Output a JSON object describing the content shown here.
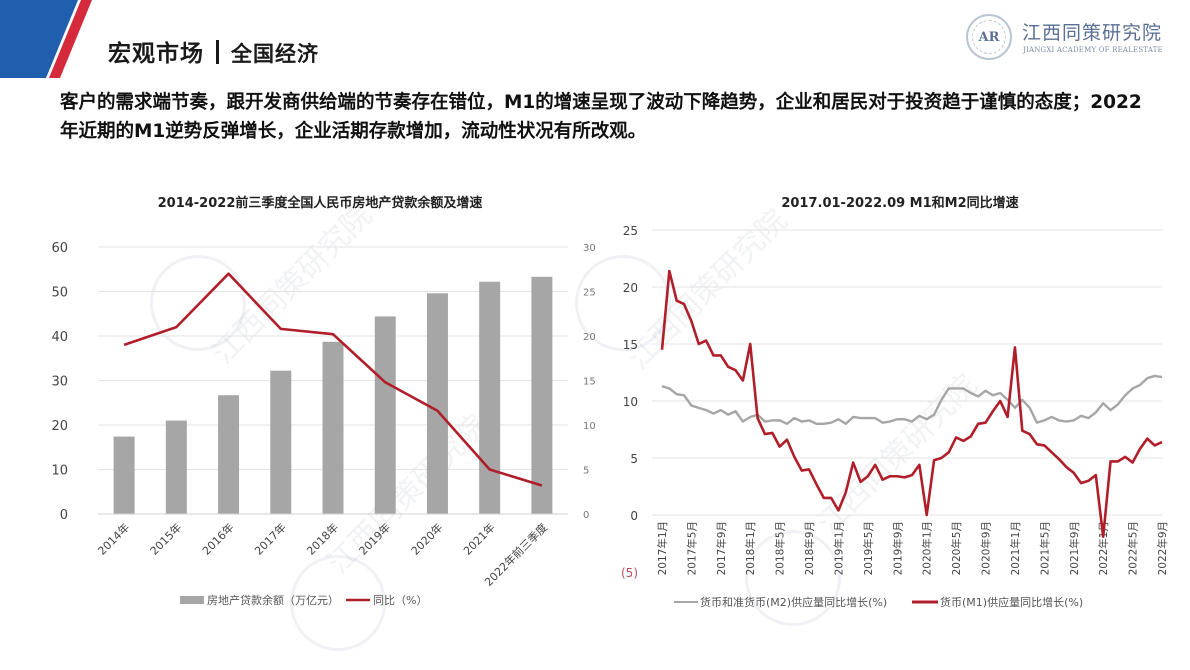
{
  "header": {
    "title": "宏观市场",
    "subtitle": "全国经济",
    "brand_colors": {
      "blue": "#1f5fae",
      "red": "#d42a3c"
    }
  },
  "logo": {
    "seal_text": "AR",
    "name_cn": "江西同策研究院",
    "name_en": "JIANGXI ACADEMY OF REALESTATE"
  },
  "summary": "客户的需求端节奏，跟开发商供给端的节奏存在错位，M1的增速呈现了波动下降趋势，企业和居民对于投资趋于谨慎的态度；2022年近期的M1逆势反弹增长，企业活期存款增加，流动性状况有所改观。",
  "watermark_text": "江西同策研究院",
  "chart_data": [
    {
      "type": "bar",
      "title": "2014-2022前三季度全国人民币房地产贷款余额及增速",
      "categories": [
        "2014年",
        "2015年",
        "2016年",
        "2017年",
        "2018年",
        "2019年",
        "2020年",
        "2021年",
        "2022年前三季度"
      ],
      "series": [
        {
          "name": "房地产贷款余额（万亿元）",
          "type": "bar",
          "axis": "left",
          "color": "#a6a6a6",
          "values": [
            17.4,
            21.0,
            26.7,
            32.2,
            38.7,
            44.4,
            49.6,
            52.2,
            53.3
          ]
        },
        {
          "name": "同比（%）",
          "type": "line",
          "axis": "right",
          "color": "#b01e2a",
          "values": [
            19.0,
            21.0,
            27.0,
            20.8,
            20.2,
            14.8,
            11.6,
            5.0,
            3.2
          ]
        }
      ],
      "yaxis_left": {
        "min": 0,
        "max": 60,
        "ticks": [
          0,
          10,
          20,
          30,
          40,
          50,
          60
        ]
      },
      "yaxis_right": {
        "min": 0,
        "max": 30,
        "ticks": [
          0,
          5,
          10,
          15,
          20,
          25,
          30
        ]
      },
      "grid": true,
      "legend_position": "bottom"
    },
    {
      "type": "line",
      "title": "2017.01-2022.09 M1和M2同比增速",
      "x_start": "2017-01",
      "x_end": "2022-09",
      "tick_labels": [
        "2017年1月",
        "2017年5月",
        "2017年9月",
        "2018年1月",
        "2018年5月",
        "2018年9月",
        "2019年1月",
        "2019年5月",
        "2019年9月",
        "2020年1月",
        "2020年5月",
        "2020年9月",
        "2021年1月",
        "2021年5月",
        "2021年9月",
        "2022年1月",
        "2022年5月",
        "2022年9月"
      ],
      "yaxis": {
        "min": -5,
        "max": 25,
        "ticks": [
          25,
          20,
          15,
          10,
          5,
          0,
          -5
        ],
        "tick_labels": [
          "25",
          "20",
          "15",
          "10",
          "5",
          "0",
          "(5)"
        ]
      },
      "series": [
        {
          "name": "货币和准货币(M2)供应量同比增长(%)",
          "color": "#a6a6a6",
          "values": [
            11.3,
            11.1,
            10.6,
            10.5,
            9.6,
            9.4,
            9.2,
            8.9,
            9.2,
            8.8,
            9.1,
            8.2,
            8.6,
            8.8,
            8.2,
            8.3,
            8.3,
            8.0,
            8.5,
            8.2,
            8.3,
            8.0,
            8.0,
            8.1,
            8.4,
            8.0,
            8.6,
            8.5,
            8.5,
            8.5,
            8.1,
            8.2,
            8.4,
            8.4,
            8.2,
            8.7,
            8.4,
            8.8,
            10.1,
            11.1,
            11.1,
            11.1,
            10.7,
            10.4,
            10.9,
            10.5,
            10.7,
            10.1,
            9.4,
            10.1,
            9.4,
            8.1,
            8.3,
            8.6,
            8.3,
            8.2,
            8.3,
            8.7,
            8.5,
            9.0,
            9.8,
            9.2,
            9.7,
            10.5,
            11.1,
            11.4,
            12.0,
            12.2,
            12.1
          ]
        },
        {
          "name": "货币(M1)供应量同比增长(%)",
          "color": "#b01e2a",
          "values": [
            14.5,
            21.4,
            18.8,
            18.5,
            17.0,
            15.0,
            15.3,
            14.0,
            14.0,
            13.0,
            12.7,
            11.8,
            15.0,
            8.5,
            7.1,
            7.2,
            6.0,
            6.6,
            5.1,
            3.9,
            4.0,
            2.7,
            1.5,
            1.5,
            0.4,
            2.0,
            4.6,
            2.9,
            3.4,
            4.4,
            3.1,
            3.4,
            3.4,
            3.3,
            3.5,
            4.4,
            0.0,
            4.8,
            5.0,
            5.5,
            6.8,
            6.5,
            6.9,
            8.0,
            8.1,
            9.1,
            10.0,
            8.6,
            14.7,
            7.4,
            7.1,
            6.2,
            6.1,
            5.5,
            4.9,
            4.2,
            3.7,
            2.8,
            3.0,
            3.5,
            -1.9,
            4.7,
            4.7,
            5.1,
            4.6,
            5.8,
            6.7,
            6.1,
            6.4
          ]
        }
      ],
      "grid": true,
      "legend_position": "bottom"
    }
  ]
}
